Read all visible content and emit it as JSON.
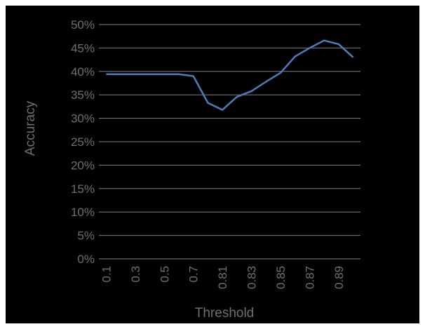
{
  "chart_data": {
    "type": "line",
    "title": "",
    "xlabel": "Threshold",
    "ylabel": "Accuracy",
    "x": [
      "0.1",
      "0.2",
      "0.3",
      "0.4",
      "0.5",
      "0.6",
      "0.7",
      "0.8",
      "0.81",
      "0.82",
      "0.83",
      "0.84",
      "0.85",
      "0.86",
      "0.87",
      "0.88",
      "0.89",
      "0.9"
    ],
    "x_tick_labels": [
      "0.1",
      "0.3",
      "0.5",
      "0.7",
      "0.81",
      "0.83",
      "0.85",
      "0.87",
      "0.89"
    ],
    "y_tick_labels": [
      "0%",
      "5%",
      "10%",
      "15%",
      "20%",
      "25%",
      "30%",
      "35%",
      "40%",
      "45%",
      "50%"
    ],
    "ylim": [
      0,
      0.5
    ],
    "y_format": "percent",
    "grid": "horizontal",
    "series": [
      {
        "values": [
          0.394,
          0.394,
          0.394,
          0.394,
          0.394,
          0.394,
          0.39,
          0.333,
          0.318,
          0.346,
          0.358,
          0.378,
          0.397,
          0.432,
          0.45,
          0.466,
          0.458,
          0.43
        ],
        "color": "#4a7ebb"
      }
    ],
    "colors": {
      "background": "#000000",
      "grid": "#7f7f7f",
      "text": "#6f6f6f"
    }
  }
}
